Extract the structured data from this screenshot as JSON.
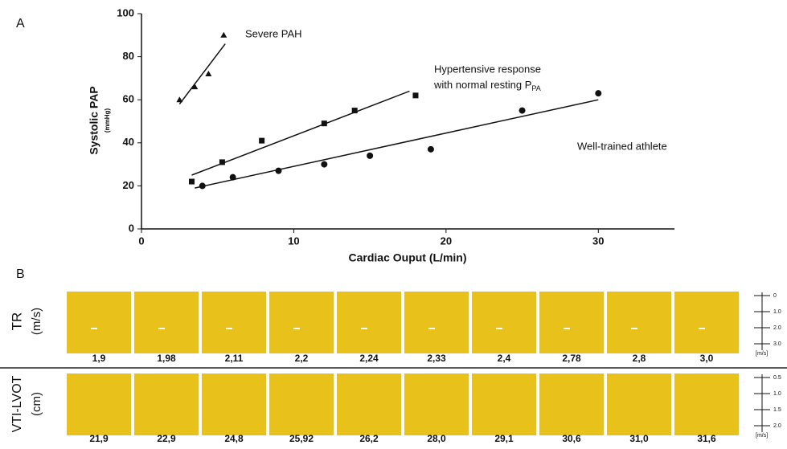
{
  "chart_data": {
    "type": "scatter",
    "panel_label": "A",
    "ylabel": "Systolic PAP",
    "ylabel_unit": "(mmHg)",
    "xlabel": "Cardiac Ouput (L/min)",
    "xlim": [
      0,
      35
    ],
    "xticks": [
      0,
      10,
      20,
      30
    ],
    "ylim": [
      0,
      100
    ],
    "yticks": [
      0,
      20,
      40,
      60,
      80,
      100
    ],
    "annotations": [
      "Severe PAH",
      "Hypertensive response",
      "with normal resting P",
      "Well-trained athlete"
    ],
    "annotation_subscript": "PA",
    "series": [
      {
        "marker": "triangle",
        "color": "#111111",
        "x": [
          2.5,
          3.5,
          4.4,
          5.4
        ],
        "values": [
          60,
          66,
          72,
          90
        ],
        "fit_x": [
          2.5,
          5.5
        ],
        "fit_y": [
          58,
          86
        ]
      },
      {
        "marker": "square",
        "color": "#111111",
        "x": [
          3.3,
          5.3,
          7.9,
          12,
          14,
          18
        ],
        "values": [
          22,
          31,
          41,
          49,
          55,
          62
        ],
        "fit_x": [
          3.3,
          17.6
        ],
        "fit_y": [
          25,
          64
        ]
      },
      {
        "marker": "circle",
        "color": "#111111",
        "x": [
          4,
          6,
          9,
          12,
          15,
          19,
          25,
          30
        ],
        "values": [
          20,
          24,
          27,
          30,
          34,
          37,
          55,
          63
        ],
        "fit_x": [
          3.5,
          30
        ],
        "fit_y": [
          19,
          60
        ]
      }
    ]
  },
  "panel_b": {
    "panel_label": "B",
    "tr_label": "TR",
    "tr_unit": "(m/s)",
    "vti_label": "VTI-LVOT",
    "vti_unit": "(cm)",
    "tr_values": [
      "1,9",
      "1,98",
      "2,11",
      "2,2",
      "2,24",
      "2,33",
      "2,4",
      "2,78",
      "2,8",
      "3,0"
    ],
    "vti_values": [
      "21,9",
      "22,9",
      "24,8",
      "25,92",
      "26,2",
      "28,0",
      "29,1",
      "30,6",
      "31,0",
      "31,6"
    ],
    "tr_scale": [
      "0",
      "1.0",
      "2.0",
      "3.0",
      "[m/s]"
    ],
    "vti_scale": [
      "0.5",
      "1.0",
      "1.5",
      "2.0",
      "[m/s]"
    ]
  }
}
